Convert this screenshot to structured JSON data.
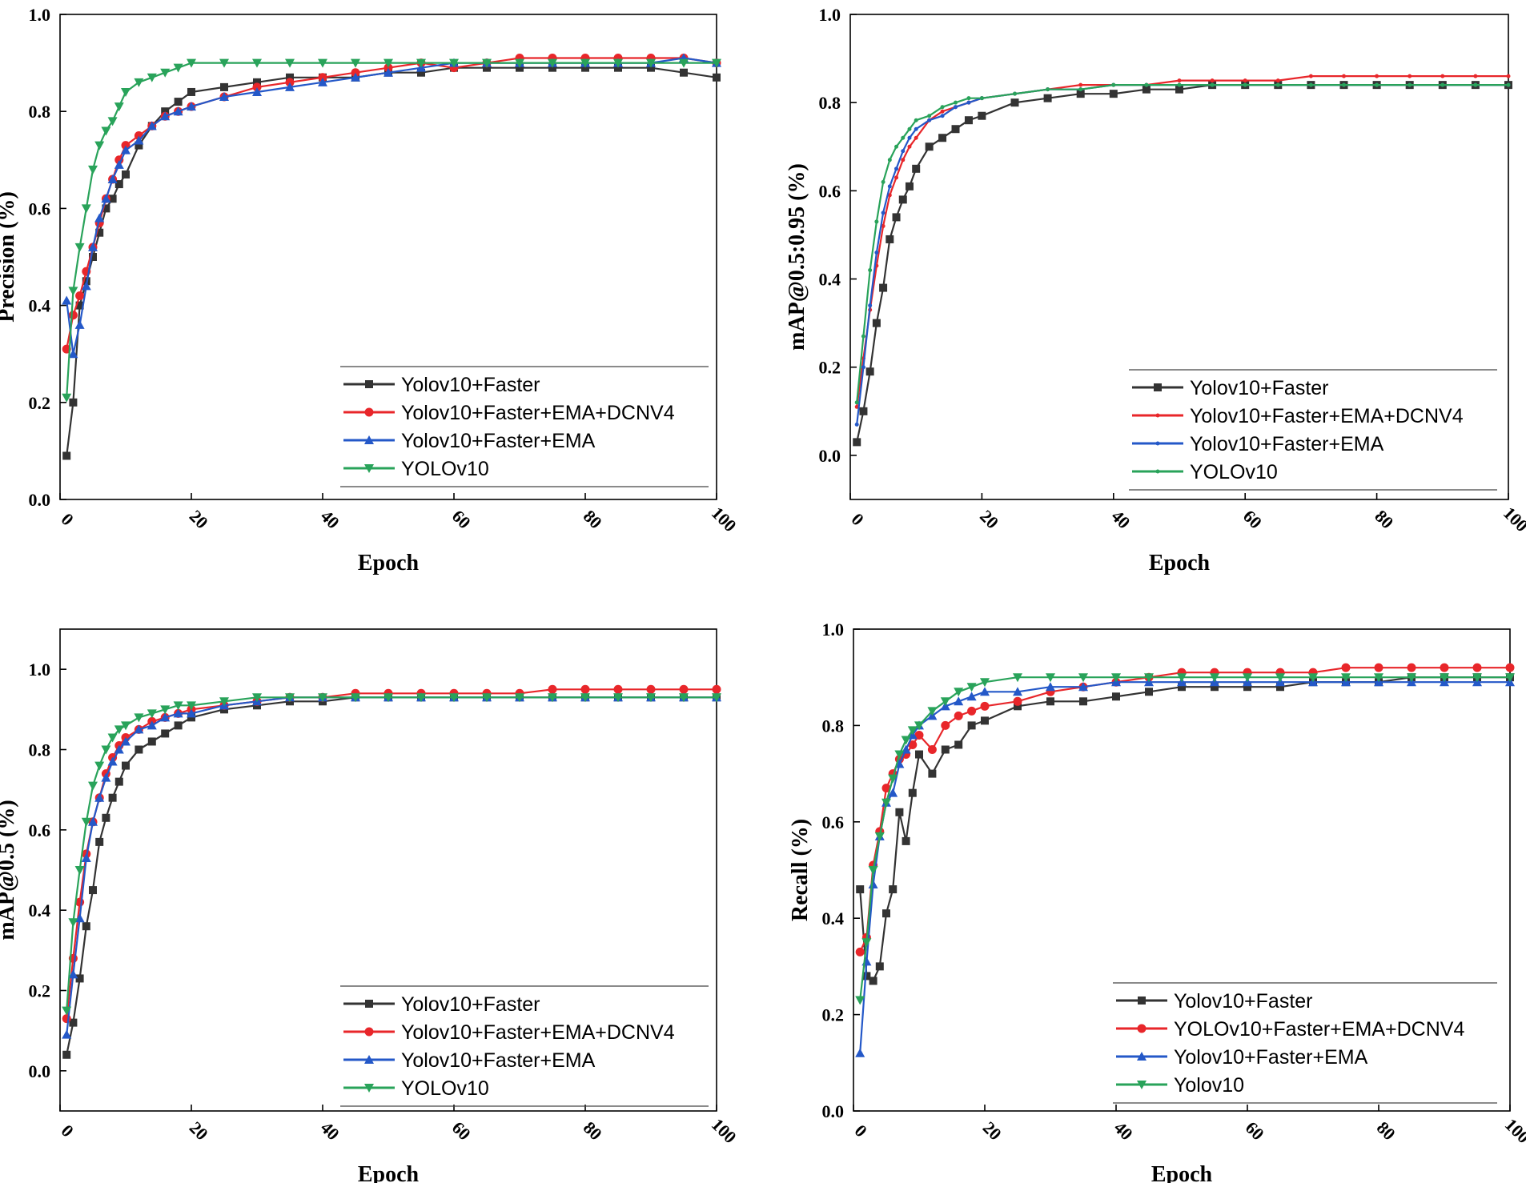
{
  "colors": {
    "black": "#333333",
    "red": "#e8262a",
    "blue": "#2458c8",
    "green": "#29a35a"
  },
  "chart_data": [
    {
      "type": "line",
      "ylabel": "Precision (%)",
      "xlabel": "Epoch",
      "xlim": [
        0,
        100
      ],
      "ylim": [
        0,
        1.0
      ],
      "x_ticks": [
        0,
        20,
        40,
        60,
        80,
        100
      ],
      "y_ticks": [
        "0.0",
        "0.2",
        "0.4",
        "0.6",
        "0.8",
        "1.0"
      ],
      "legend_position": "bottom-right",
      "x": [
        1,
        2,
        3,
        4,
        5,
        6,
        7,
        8,
        9,
        10,
        12,
        14,
        16,
        18,
        20,
        25,
        30,
        35,
        40,
        45,
        50,
        55,
        60,
        65,
        70,
        75,
        80,
        85,
        90,
        95,
        100
      ],
      "series": [
        {
          "name": "Yolov10+Faster",
          "color": "#333333",
          "marker": "square",
          "values": [
            0.09,
            0.2,
            0.4,
            0.45,
            0.5,
            0.55,
            0.6,
            0.62,
            0.65,
            0.67,
            0.73,
            0.77,
            0.8,
            0.82,
            0.84,
            0.85,
            0.86,
            0.87,
            0.87,
            0.87,
            0.88,
            0.88,
            0.89,
            0.89,
            0.89,
            0.89,
            0.89,
            0.89,
            0.89,
            0.88,
            0.87
          ]
        },
        {
          "name": "Yolov10+Faster+EMA+DCNV4",
          "color": "#e8262a",
          "marker": "circle",
          "values": [
            0.31,
            0.38,
            0.42,
            0.47,
            0.52,
            0.57,
            0.62,
            0.66,
            0.7,
            0.73,
            0.75,
            0.77,
            0.79,
            0.8,
            0.81,
            0.83,
            0.85,
            0.86,
            0.87,
            0.88,
            0.89,
            0.9,
            0.89,
            0.9,
            0.91,
            0.91,
            0.91,
            0.91,
            0.91,
            0.91,
            0.9
          ]
        },
        {
          "name": "Yolov10+Faster+EMA",
          "color": "#2458c8",
          "marker": "triangle-up",
          "values": [
            0.41,
            0.3,
            0.36,
            0.44,
            0.52,
            0.58,
            0.62,
            0.66,
            0.69,
            0.72,
            0.74,
            0.77,
            0.79,
            0.8,
            0.81,
            0.83,
            0.84,
            0.85,
            0.86,
            0.87,
            0.88,
            0.89,
            0.9,
            0.9,
            0.9,
            0.9,
            0.9,
            0.9,
            0.9,
            0.91,
            0.9
          ]
        },
        {
          "name": "YOLOv10",
          "color": "#29a35a",
          "marker": "triangle-down",
          "values": [
            0.21,
            0.43,
            0.52,
            0.6,
            0.68,
            0.73,
            0.76,
            0.78,
            0.81,
            0.84,
            0.86,
            0.87,
            0.88,
            0.89,
            0.9,
            0.9,
            0.9,
            0.9,
            0.9,
            0.9,
            0.9,
            0.9,
            0.9,
            0.9,
            0.9,
            0.9,
            0.9,
            0.9,
            0.9,
            0.9,
            0.9
          ]
        }
      ]
    },
    {
      "type": "line",
      "ylabel": "mAP@0.5:0.95 (%)",
      "xlabel": "Epoch",
      "xlim": [
        0,
        100
      ],
      "ylim": [
        -0.1,
        1.0
      ],
      "x_ticks": [
        0,
        20,
        40,
        60,
        80,
        100
      ],
      "y_ticks": [
        "0.0",
        "0.2",
        "0.4",
        "0.6",
        "0.8",
        "1.0"
      ],
      "legend_position": "bottom-right",
      "x": [
        1,
        2,
        3,
        4,
        5,
        6,
        7,
        8,
        9,
        10,
        12,
        14,
        16,
        18,
        20,
        25,
        30,
        35,
        40,
        45,
        50,
        55,
        60,
        65,
        70,
        75,
        80,
        85,
        90,
        95,
        100
      ],
      "series": [
        {
          "name": "Yolov10+Faster",
          "color": "#333333",
          "marker": "square",
          "values": [
            0.03,
            0.1,
            0.19,
            0.3,
            0.38,
            0.49,
            0.54,
            0.58,
            0.61,
            0.65,
            0.7,
            0.72,
            0.74,
            0.76,
            0.77,
            0.8,
            0.81,
            0.82,
            0.82,
            0.83,
            0.83,
            0.84,
            0.84,
            0.84,
            0.84,
            0.84,
            0.84,
            0.84,
            0.84,
            0.84,
            0.84
          ]
        },
        {
          "name": "Yolov10+Faster+EMA+DCNV4",
          "color": "#e8262a",
          "marker": "dot",
          "values": [
            0.11,
            0.22,
            0.33,
            0.43,
            0.52,
            0.59,
            0.63,
            0.67,
            0.7,
            0.72,
            0.76,
            0.78,
            0.79,
            0.8,
            0.81,
            0.82,
            0.83,
            0.84,
            0.84,
            0.84,
            0.85,
            0.85,
            0.85,
            0.85,
            0.86,
            0.86,
            0.86,
            0.86,
            0.86,
            0.86,
            0.86
          ]
        },
        {
          "name": "Yolov10+Faster+EMA",
          "color": "#2458c8",
          "marker": "dot",
          "values": [
            0.07,
            0.2,
            0.34,
            0.46,
            0.55,
            0.61,
            0.65,
            0.69,
            0.72,
            0.74,
            0.76,
            0.77,
            0.79,
            0.8,
            0.81,
            0.82,
            0.83,
            0.83,
            0.84,
            0.84,
            0.84,
            0.84,
            0.84,
            0.84,
            0.84,
            0.84,
            0.84,
            0.84,
            0.84,
            0.84,
            0.84
          ]
        },
        {
          "name": "YOLOv10",
          "color": "#29a35a",
          "marker": "dot",
          "values": [
            0.12,
            0.27,
            0.42,
            0.53,
            0.62,
            0.67,
            0.7,
            0.72,
            0.74,
            0.76,
            0.77,
            0.79,
            0.8,
            0.81,
            0.81,
            0.82,
            0.83,
            0.83,
            0.84,
            0.84,
            0.84,
            0.84,
            0.84,
            0.84,
            0.84,
            0.84,
            0.84,
            0.84,
            0.84,
            0.84,
            0.84
          ]
        }
      ]
    },
    {
      "type": "line",
      "ylabel": "mAP@0.5 (%)",
      "xlabel": "Epoch",
      "xlim": [
        0,
        100
      ],
      "ylim": [
        -0.1,
        1.1
      ],
      "x_ticks": [
        0,
        20,
        40,
        60,
        80,
        100
      ],
      "y_ticks": [
        "0.0",
        "0.2",
        "0.4",
        "0.6",
        "0.8",
        "1.0"
      ],
      "legend_position": "bottom-right",
      "x": [
        1,
        2,
        3,
        4,
        5,
        6,
        7,
        8,
        9,
        10,
        12,
        14,
        16,
        18,
        20,
        25,
        30,
        35,
        40,
        45,
        50,
        55,
        60,
        65,
        70,
        75,
        80,
        85,
        90,
        95,
        100
      ],
      "series": [
        {
          "name": "Yolov10+Faster",
          "color": "#333333",
          "marker": "square",
          "values": [
            0.04,
            0.12,
            0.23,
            0.36,
            0.45,
            0.57,
            0.63,
            0.68,
            0.72,
            0.76,
            0.8,
            0.82,
            0.84,
            0.86,
            0.88,
            0.9,
            0.91,
            0.92,
            0.92,
            0.93,
            0.93,
            0.93,
            0.93,
            0.93,
            0.93,
            0.93,
            0.93,
            0.93,
            0.93,
            0.93,
            0.93
          ]
        },
        {
          "name": "Yolov10+Faster+EMA+DCNV4",
          "color": "#e8262a",
          "marker": "circle",
          "values": [
            0.13,
            0.28,
            0.42,
            0.54,
            0.62,
            0.68,
            0.74,
            0.78,
            0.81,
            0.83,
            0.85,
            0.87,
            0.88,
            0.89,
            0.9,
            0.91,
            0.92,
            0.93,
            0.93,
            0.94,
            0.94,
            0.94,
            0.94,
            0.94,
            0.94,
            0.95,
            0.95,
            0.95,
            0.95,
            0.95,
            0.95
          ]
        },
        {
          "name": "Yolov10+Faster+EMA",
          "color": "#2458c8",
          "marker": "triangle-up",
          "values": [
            0.09,
            0.24,
            0.38,
            0.53,
            0.62,
            0.68,
            0.73,
            0.77,
            0.8,
            0.82,
            0.85,
            0.86,
            0.88,
            0.89,
            0.89,
            0.91,
            0.92,
            0.93,
            0.93,
            0.93,
            0.93,
            0.93,
            0.93,
            0.93,
            0.93,
            0.93,
            0.93,
            0.93,
            0.93,
            0.93,
            0.93
          ]
        },
        {
          "name": "YOLOv10",
          "color": "#29a35a",
          "marker": "triangle-down",
          "values": [
            0.15,
            0.37,
            0.5,
            0.62,
            0.71,
            0.76,
            0.8,
            0.83,
            0.85,
            0.86,
            0.88,
            0.89,
            0.9,
            0.91,
            0.91,
            0.92,
            0.93,
            0.93,
            0.93,
            0.93,
            0.93,
            0.93,
            0.93,
            0.93,
            0.93,
            0.93,
            0.93,
            0.93,
            0.93,
            0.93,
            0.93
          ]
        }
      ]
    },
    {
      "type": "line",
      "ylabel": "Recall (%)",
      "xlabel": "Epoch",
      "xlim": [
        0,
        100
      ],
      "ylim": [
        0,
        1.0
      ],
      "x_ticks": [
        0,
        20,
        40,
        60,
        80,
        100
      ],
      "y_ticks": [
        "0.0",
        "0.2",
        "0.4",
        "0.6",
        "0.8",
        "1.0"
      ],
      "legend_position": "bottom-right",
      "x": [
        1,
        2,
        3,
        4,
        5,
        6,
        7,
        8,
        9,
        10,
        12,
        14,
        16,
        18,
        20,
        25,
        30,
        35,
        40,
        45,
        50,
        55,
        60,
        65,
        70,
        75,
        80,
        85,
        90,
        95,
        100
      ],
      "series": [
        {
          "name": "Yolov10+Faster",
          "color": "#333333",
          "marker": "square",
          "values": [
            0.46,
            0.28,
            0.27,
            0.3,
            0.41,
            0.46,
            0.62,
            0.56,
            0.66,
            0.74,
            0.7,
            0.75,
            0.76,
            0.8,
            0.81,
            0.84,
            0.85,
            0.85,
            0.86,
            0.87,
            0.88,
            0.88,
            0.88,
            0.88,
            0.89,
            0.89,
            0.89,
            0.9,
            0.9,
            0.9,
            0.9
          ]
        },
        {
          "name": "YOLOv10+Faster+EMA+DCNV4",
          "color": "#e8262a",
          "marker": "circle",
          "values": [
            0.33,
            0.36,
            0.51,
            0.58,
            0.67,
            0.7,
            0.73,
            0.74,
            0.76,
            0.78,
            0.75,
            0.8,
            0.82,
            0.83,
            0.84,
            0.85,
            0.87,
            0.88,
            0.89,
            0.9,
            0.91,
            0.91,
            0.91,
            0.91,
            0.91,
            0.92,
            0.92,
            0.92,
            0.92,
            0.92,
            0.92
          ]
        },
        {
          "name": "Yolov10+Faster+EMA",
          "color": "#2458c8",
          "marker": "triangle-up",
          "values": [
            0.12,
            0.31,
            0.47,
            0.57,
            0.64,
            0.66,
            0.72,
            0.75,
            0.78,
            0.8,
            0.82,
            0.84,
            0.85,
            0.86,
            0.87,
            0.87,
            0.88,
            0.88,
            0.89,
            0.89,
            0.89,
            0.89,
            0.89,
            0.89,
            0.89,
            0.89,
            0.89,
            0.89,
            0.89,
            0.89,
            0.89
          ]
        },
        {
          "name": "Yolov10",
          "color": "#29a35a",
          "marker": "triangle-down",
          "values": [
            0.23,
            0.35,
            0.5,
            0.57,
            0.64,
            0.69,
            0.74,
            0.77,
            0.79,
            0.8,
            0.83,
            0.85,
            0.87,
            0.88,
            0.89,
            0.9,
            0.9,
            0.9,
            0.9,
            0.9,
            0.9,
            0.9,
            0.9,
            0.9,
            0.9,
            0.9,
            0.9,
            0.9,
            0.9,
            0.9,
            0.9
          ]
        }
      ]
    }
  ]
}
